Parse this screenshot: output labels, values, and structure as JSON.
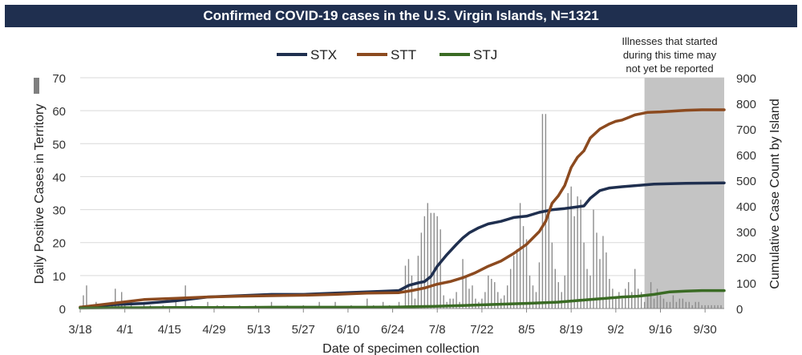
{
  "title": "Confirmed COVID-19 cases in the U.S. Virgin Islands, N=1321",
  "chart_data": {
    "type": "bar",
    "title": "Confirmed COVID-19 cases in the U.S. Virgin Islands, N=1321",
    "xlabel": "Date of specimen collection",
    "ylabel": "Daily Positive Cases in Territory",
    "y2label": "Cumulative Case Count by Island",
    "ylim": [
      0,
      70
    ],
    "y2lim": [
      0,
      900
    ],
    "yticks": [
      0,
      10,
      20,
      30,
      40,
      50,
      60,
      70
    ],
    "y2ticks": [
      0,
      100,
      200,
      300,
      400,
      500,
      600,
      700,
      800,
      900
    ],
    "x_tick_labels": [
      "3/18",
      "4/1",
      "4/15",
      "4/29",
      "5/13",
      "5/27",
      "6/10",
      "6/24",
      "7/8",
      "7/22",
      "8/5",
      "8/19",
      "9/2",
      "9/16",
      "9/30"
    ],
    "x_range_days": [
      0,
      202
    ],
    "grid": "horizontal",
    "legend_position": "top",
    "annotation": {
      "text_lines": [
        "Illnesses that started",
        "during this time may",
        "not yet be reported"
      ],
      "shaded_start_day": 177,
      "shaded_end_day": 202
    },
    "daily_cases": {
      "name": "Daily positive cases",
      "axis": "left",
      "color": "#8c8c8c",
      "x_day": [
        1,
        2,
        4,
        5,
        7,
        10,
        11,
        12,
        13,
        14,
        16,
        20,
        22,
        26,
        30,
        33,
        35,
        40,
        43,
        45,
        50,
        55,
        60,
        65,
        70,
        75,
        80,
        85,
        90,
        92,
        95,
        97,
        100,
        102,
        103,
        104,
        105,
        106,
        107,
        108,
        109,
        110,
        111,
        112,
        113,
        114,
        115,
        116,
        117,
        118,
        119,
        120,
        121,
        122,
        123,
        124,
        125,
        126,
        127,
        128,
        129,
        130,
        131,
        132,
        133,
        134,
        135,
        136,
        137,
        138,
        139,
        140,
        141,
        142,
        143,
        144,
        145,
        146,
        147,
        148,
        149,
        150,
        151,
        152,
        153,
        154,
        155,
        156,
        157,
        158,
        159,
        160,
        161,
        162,
        163,
        164,
        165,
        166,
        167,
        168,
        169,
        170,
        171,
        172,
        173,
        174,
        175,
        176,
        177,
        178,
        179,
        180,
        181,
        182,
        183,
        184,
        185,
        186,
        187,
        188,
        189,
        190,
        191,
        192,
        193,
        194,
        195,
        196,
        197,
        198,
        199,
        200,
        201
      ],
      "values": [
        4,
        7,
        1,
        2,
        1,
        2,
        6,
        1,
        5,
        2,
        1,
        2,
        1,
        1,
        2,
        7,
        1,
        2,
        1,
        1,
        1,
        1,
        2,
        1,
        1,
        2,
        2,
        1,
        3,
        1,
        2,
        1,
        2,
        13,
        15,
        10,
        3,
        16,
        23,
        28,
        32,
        29,
        29,
        28,
        24,
        4,
        2,
        3,
        3,
        5,
        2,
        15,
        10,
        6,
        7,
        3,
        2,
        3,
        5,
        10,
        9,
        8,
        5,
        3,
        4,
        7,
        12,
        16,
        18,
        32,
        25,
        21,
        10,
        7,
        5,
        14,
        59,
        59,
        29,
        20,
        12,
        8,
        5,
        10,
        35,
        37,
        28,
        34,
        33,
        20,
        12,
        10,
        30,
        23,
        15,
        22,
        17,
        9,
        6,
        3,
        5,
        3,
        6,
        8,
        5,
        12,
        6,
        5,
        2,
        4,
        8,
        3,
        6,
        4,
        3,
        2,
        2,
        4,
        2,
        3,
        3,
        2,
        2,
        1,
        2,
        2,
        1,
        1,
        1,
        1,
        1,
        1,
        1
      ]
    },
    "series": [
      {
        "name": "STX",
        "axis": "right",
        "color": "#1f2f4f",
        "x_day": [
          0,
          10,
          20,
          30,
          40,
          50,
          60,
          70,
          80,
          90,
          100,
          103,
          106,
          108,
          110,
          112,
          115,
          118,
          120,
          122,
          125,
          128,
          132,
          136,
          140,
          144,
          148,
          152,
          155,
          158,
          160,
          163,
          166,
          170,
          175,
          180,
          190,
          202
        ],
        "values": [
          5,
          15,
          20,
          30,
          45,
          50,
          55,
          55,
          60,
          65,
          70,
          90,
          100,
          105,
          125,
          165,
          210,
          250,
          275,
          295,
          315,
          330,
          340,
          355,
          360,
          375,
          385,
          390,
          395,
          400,
          430,
          460,
          470,
          475,
          480,
          485,
          488,
          490
        ]
      },
      {
        "name": "STT",
        "axis": "right",
        "color": "#8c4a1f",
        "x_day": [
          0,
          10,
          20,
          30,
          40,
          50,
          60,
          70,
          80,
          90,
          100,
          104,
          108,
          112,
          116,
          120,
          124,
          128,
          132,
          136,
          140,
          144,
          146,
          148,
          150,
          152,
          154,
          156,
          158,
          160,
          163,
          166,
          168,
          170,
          172,
          174,
          176,
          178,
          182,
          186,
          190,
          195,
          202
        ],
        "values": [
          5,
          20,
          35,
          40,
          45,
          48,
          50,
          52,
          55,
          60,
          62,
          70,
          80,
          95,
          105,
          120,
          140,
          165,
          185,
          215,
          250,
          300,
          340,
          410,
          440,
          480,
          550,
          590,
          615,
          665,
          700,
          720,
          730,
          735,
          745,
          755,
          760,
          765,
          767,
          770,
          773,
          775,
          775
        ]
      },
      {
        "name": "STJ",
        "axis": "right",
        "color": "#3a6b24",
        "x_day": [
          0,
          10,
          20,
          30,
          40,
          50,
          60,
          70,
          80,
          90,
          100,
          110,
          120,
          130,
          140,
          150,
          160,
          165,
          170,
          175,
          180,
          185,
          190,
          195,
          202
        ],
        "values": [
          2,
          3,
          3,
          4,
          4,
          4,
          5,
          5,
          5,
          5,
          6,
          8,
          12,
          16,
          20,
          25,
          35,
          40,
          45,
          48,
          55,
          65,
          68,
          70,
          70
        ]
      }
    ]
  }
}
